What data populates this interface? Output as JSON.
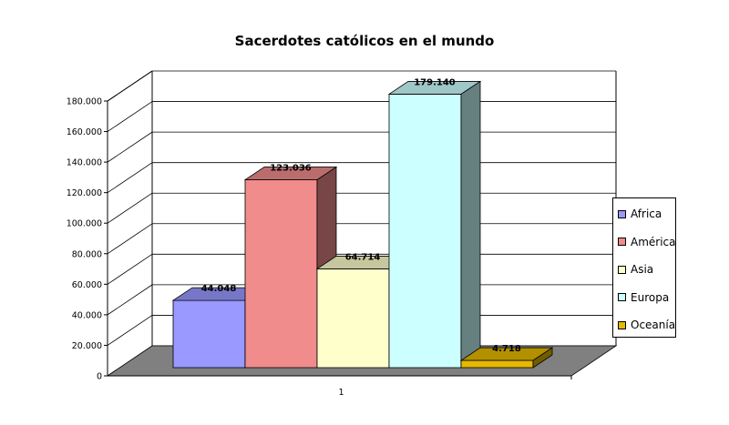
{
  "chart_data": {
    "type": "bar",
    "title": "Sacerdotes católicos en el mundo",
    "categories": [
      "1"
    ],
    "series": [
      {
        "name": "Africa",
        "value": 44048,
        "label": "44.048",
        "color": "#9999ff"
      },
      {
        "name": "América",
        "value": 123036,
        "label": "123.036",
        "color": "#f08c8c"
      },
      {
        "name": "Asia",
        "value": 64714,
        "label": "64.714",
        "color": "#ffffcc"
      },
      {
        "name": "Europa",
        "value": 179140,
        "label": "179.140",
        "color": "#ccffff"
      },
      {
        "name": "Oceanía",
        "value": 4718,
        "label": "4.718",
        "color": "#e6b800"
      }
    ],
    "ylim": [
      0,
      180000
    ],
    "yticks": [
      {
        "value": 0,
        "label": "0"
      },
      {
        "value": 20000,
        "label": "20.000"
      },
      {
        "value": 40000,
        "label": "40.000"
      },
      {
        "value": 60000,
        "label": "60.000"
      },
      {
        "value": 80000,
        "label": "80.000"
      },
      {
        "value": 100000,
        "label": "100.000"
      },
      {
        "value": 120000,
        "label": "120.000"
      },
      {
        "value": 140000,
        "label": "140.000"
      },
      {
        "value": 160000,
        "label": "160.000"
      },
      {
        "value": 180000,
        "label": "180.000"
      }
    ],
    "grid": true,
    "legend": "right",
    "floor_color": "#808080"
  }
}
